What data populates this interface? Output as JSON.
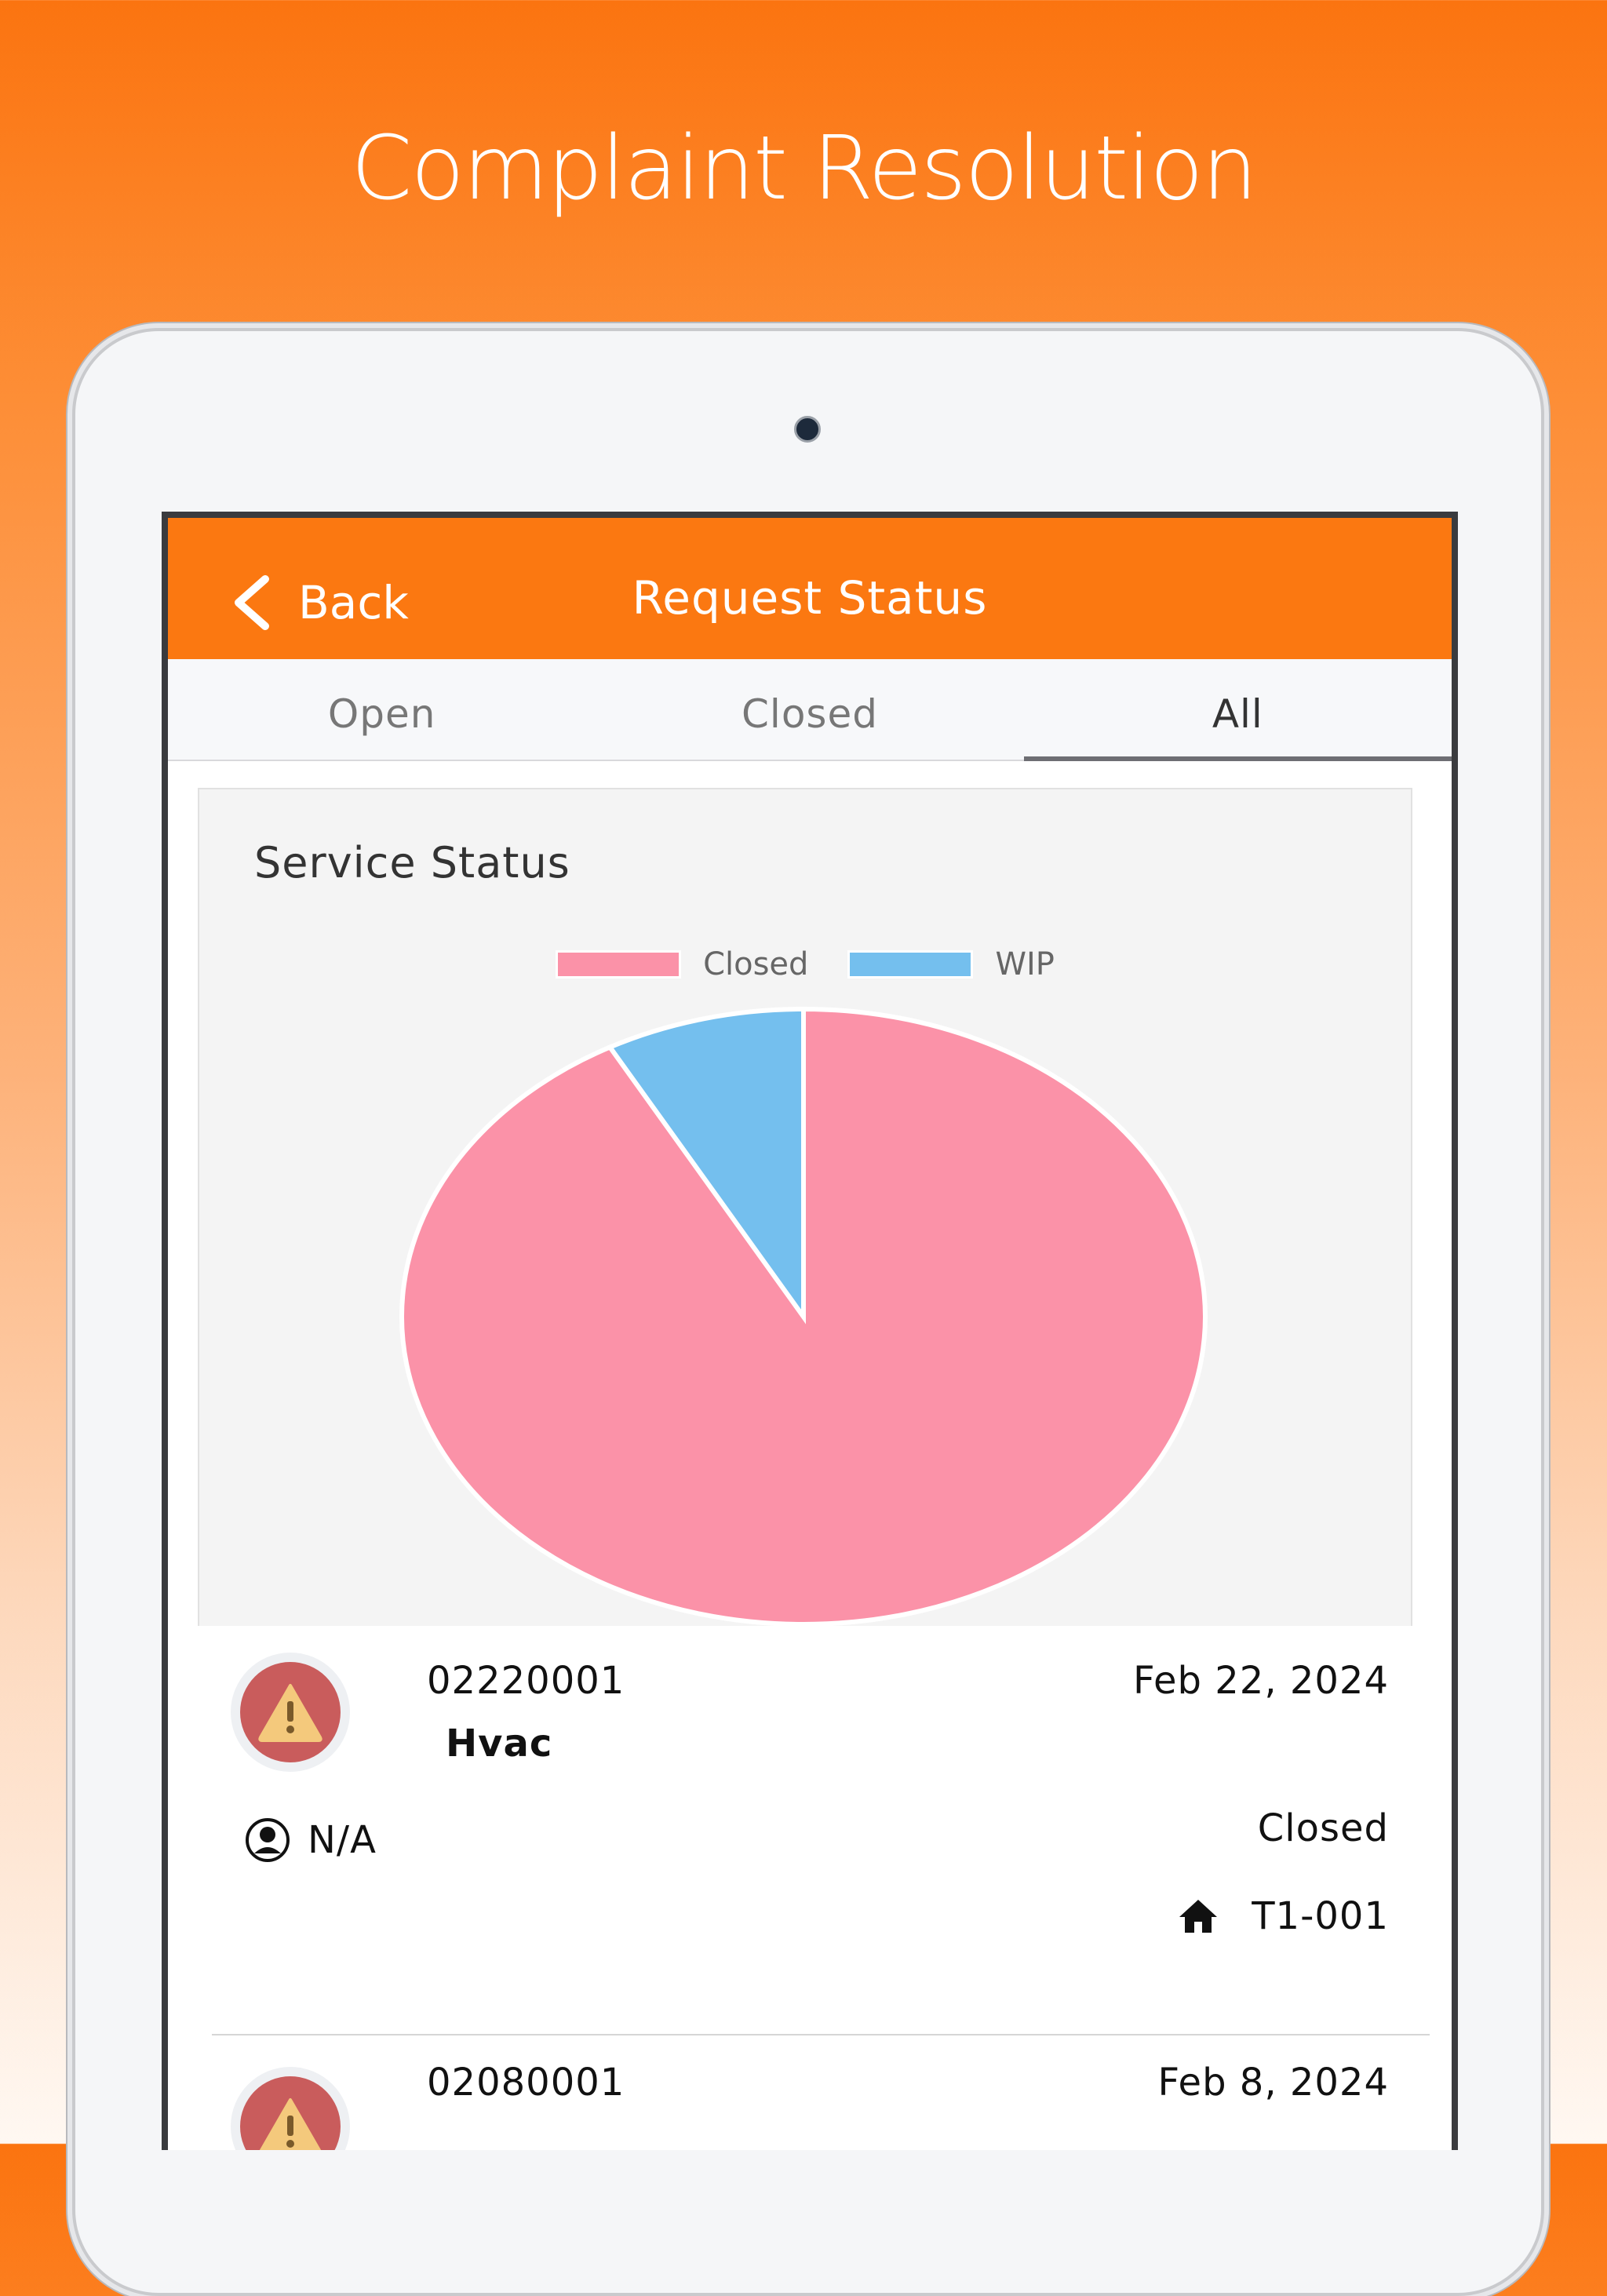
{
  "headline": "Complaint Resolution",
  "nav": {
    "back_label": "Back",
    "title": "Request Status"
  },
  "tabs": [
    {
      "label": "Open"
    },
    {
      "label": "Closed"
    },
    {
      "label": "All"
    }
  ],
  "chart_card": {
    "title": "Service Status"
  },
  "chart_data": {
    "type": "pie",
    "title": "Service Status",
    "labels": [
      "Closed",
      "WIP"
    ],
    "values": [
      92,
      8
    ],
    "colors": [
      "#fb92a8",
      "#74bfee"
    ],
    "legend_position": "top"
  },
  "requests": [
    {
      "id": "02220001",
      "date": "Feb 22, 2024",
      "type": "Hvac",
      "assignee": "N/A",
      "status": "Closed",
      "unit": "T1-001"
    },
    {
      "id": "02080001",
      "date": "Feb 8, 2024"
    }
  ]
}
